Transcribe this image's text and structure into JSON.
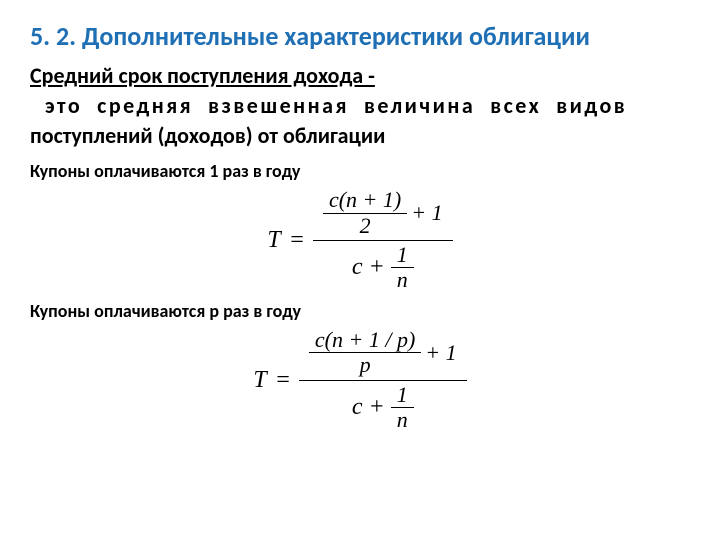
{
  "title": "5. 2. Дополнительные характеристики облигации",
  "subtitle": "Средний срок поступления дохода -",
  "definition_line1_a": "это",
  "definition_line1_b": "средняя",
  "definition_line1_c": "взвешенная",
  "definition_line1_d": "величина",
  "definition_line1_e": "всех",
  "definition_line1_f": "видов",
  "definition_line2": "поступлений (доходов) от облигации",
  "note1": "Купоны оплачиваются 1 раз в году",
  "note2": "Купоны оплачиваются р раз в году",
  "formula1": {
    "lhs": "T",
    "eq": "=",
    "num_frac_num": "c(n + 1)",
    "num_frac_den": "2",
    "num_plus": "+ 1",
    "den_c": "c +",
    "den_frac_num": "1",
    "den_frac_den": "n"
  },
  "formula2": {
    "lhs": "T",
    "eq": "=",
    "num_frac_num": "c(n + 1 / p)",
    "num_frac_den": "p",
    "num_plus": "+ 1",
    "den_c": "c +",
    "den_frac_num": "1",
    "den_frac_den": "n"
  },
  "style": {
    "title_color": "#1f6fb5",
    "text_color": "#000000",
    "background": "#ffffff",
    "title_fontsize": 26,
    "body_fontsize": 22,
    "note_fontsize": 18,
    "formula_fontsize": 24,
    "font_family_body": "Calibri, Arial, sans-serif",
    "font_family_formula": "Times New Roman, serif"
  }
}
